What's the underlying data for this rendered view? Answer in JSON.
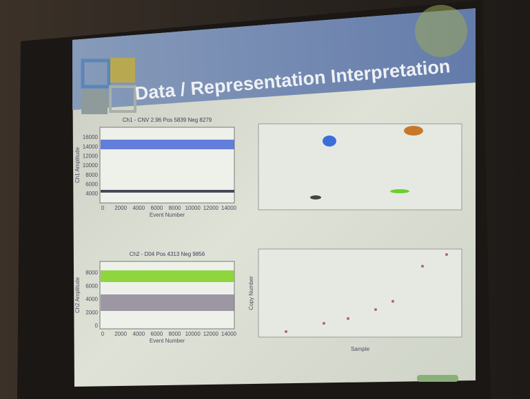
{
  "slide": {
    "title": "Data / Representation Interpretation",
    "plots": [
      {
        "title": "Ch1 - CNV 2.96 Pos 5839 Neg 8279",
        "y_label": "Ch1 Amplitude",
        "x_label": "Event Number",
        "y_ticks": [
          "16000",
          "14000",
          "12000",
          "10000",
          "8000",
          "6000",
          "4000"
        ],
        "x_ticks": [
          "0",
          "2000",
          "4000",
          "6000",
          "8000",
          "10000",
          "12000",
          "14000"
        ]
      },
      {
        "title": "Ch2 - D04 Pos 4313 Neg 9856",
        "y_label": "Ch2 Amplitude",
        "x_label": "Event Number",
        "y_ticks": [
          "8000",
          "6000",
          "4000",
          "2000",
          "0"
        ],
        "x_ticks": [
          "0",
          "2000",
          "4000",
          "6000",
          "8000",
          "10000",
          "12000",
          "14000"
        ]
      },
      {
        "y_label": "Copy Number",
        "x_label": "Sample"
      }
    ]
  }
}
